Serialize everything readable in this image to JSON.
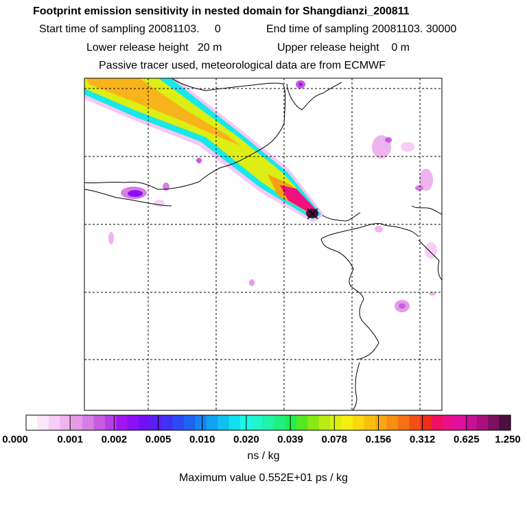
{
  "header": {
    "title": "Footprint emission sensitivity in nested domain for Shangdianzi_200811",
    "start_time": "Start time of sampling 20081103.     0",
    "end_time": "End time of sampling 20081103. 30000",
    "lower_release": "Lower release height   20 m",
    "upper_release": "Upper release height    0 m",
    "tracer_info": "Passive tracer used, meteorological data are from ECMWF"
  },
  "colorbar": {
    "tick_labels": [
      "0.000",
      "0.001",
      "0.002",
      "0.005",
      "0.010",
      "0.020",
      "0.039",
      "0.078",
      "0.156",
      "0.312",
      "0.625",
      "1.250"
    ],
    "colors": [
      "#ffffff",
      "#fbe6fb",
      "#f5cdf5",
      "#efb3f0",
      "#e59ae9",
      "#d67ee4",
      "#c65ddf",
      "#b63fe8",
      "#a116f0",
      "#8c10f3",
      "#6f10f5",
      "#5a1ef6",
      "#4131f6",
      "#2c4af4",
      "#1d64f2",
      "#1683f1",
      "#12a2ef",
      "#10c0ee",
      "#10e0f0",
      "#1ef6e8",
      "#20f5cc",
      "#1ef3a6",
      "#20f080",
      "#26ed50",
      "#55e820",
      "#8ae814",
      "#b8ec12",
      "#dcef10",
      "#f6ee10",
      "#fbd810",
      "#fac010",
      "#f8a812",
      "#f68e12",
      "#f47014",
      "#f25016",
      "#f02e1a",
      "#ef1060",
      "#e8108a",
      "#de10a0",
      "#c81096",
      "#a8107e",
      "#7a1060",
      "#4a1040"
    ],
    "units": "ns / kg"
  },
  "max_value": "Maximum value  0.552E+01 ps / kg",
  "map": {
    "receptor_marker": "x-marker",
    "plume_colors": {
      "edge": "#f5c7f6",
      "outer": "#18e8e8",
      "mid": "#ddee14",
      "core": "#f8b41a",
      "hot": "#f0107e",
      "peak": "#4a1040"
    }
  }
}
